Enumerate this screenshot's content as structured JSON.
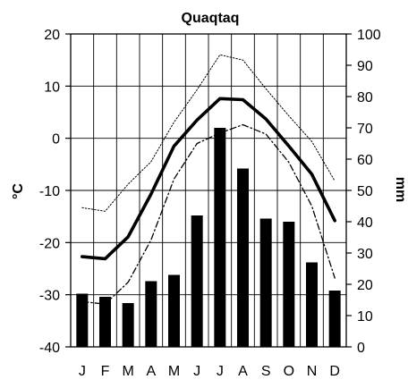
{
  "chart_data": {
    "type": "bar",
    "title": "Quaqtaq",
    "categories": [
      "J",
      "F",
      "M",
      "A",
      "M",
      "J",
      "J",
      "A",
      "S",
      "O",
      "N",
      "D"
    ],
    "left_axis": {
      "label": "°C",
      "ylim": [
        -40,
        20
      ],
      "ticks": [
        -40,
        -30,
        -20,
        -10,
        0,
        10,
        20
      ]
    },
    "right_axis": {
      "label": "mm",
      "ylim": [
        0,
        100
      ],
      "ticks": [
        0,
        10,
        20,
        30,
        40,
        50,
        60,
        70,
        80,
        90,
        100
      ]
    },
    "grid": true,
    "series": [
      {
        "type": "bar",
        "axis": "right",
        "values": [
          17,
          16,
          14,
          21,
          23,
          42,
          70,
          57,
          41,
          40,
          27,
          18
        ]
      },
      {
        "type": "line",
        "style": "thick-solid",
        "axis": "left",
        "values": [
          -22.7,
          -23.1,
          -18.9,
          -10.7,
          -1.5,
          3.5,
          7.6,
          7.4,
          3.7,
          -1.5,
          -6.9,
          -15.8
        ]
      },
      {
        "type": "line",
        "style": "dotted",
        "axis": "left",
        "values": [
          -13.3,
          -14.0,
          -8.8,
          -4.5,
          3.1,
          9.3,
          16.0,
          15.0,
          9.5,
          4.3,
          -0.6,
          -8.2
        ]
      },
      {
        "type": "line",
        "style": "dash-dot",
        "axis": "left",
        "values": [
          -31.3,
          -31.8,
          -27.6,
          -19.5,
          -7.8,
          -1.0,
          1.0,
          2.6,
          0.8,
          -4.6,
          -13.0,
          -26.8
        ]
      }
    ]
  }
}
